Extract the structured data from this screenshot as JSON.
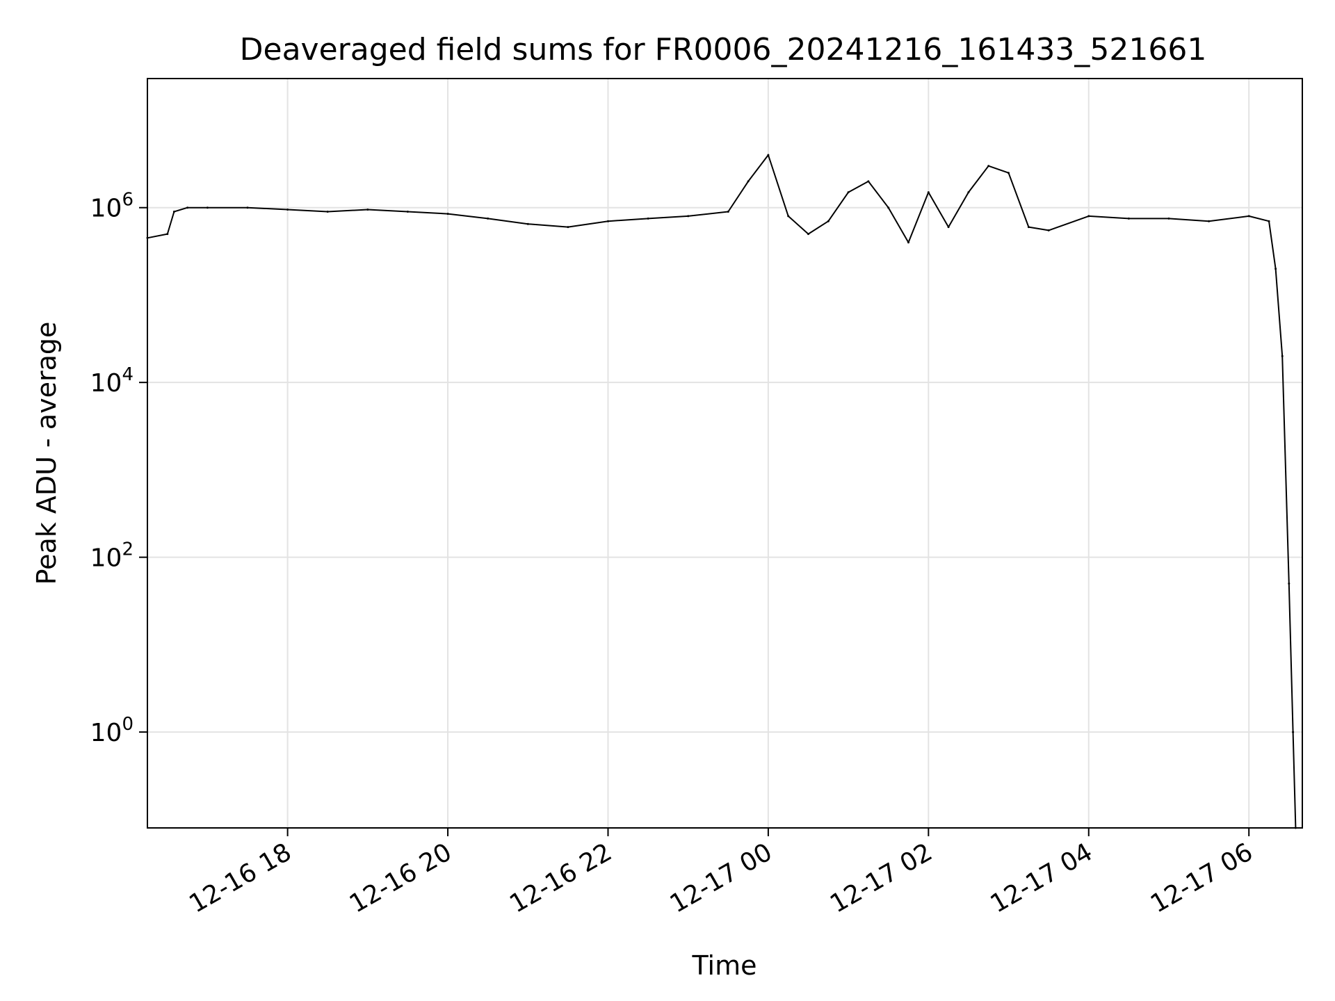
{
  "chart_data": {
    "type": "line",
    "title": "Deaveraged field sums for FR0006_20241216_161433_521661",
    "xlabel": "Time",
    "ylabel": "Peak ADU - average",
    "yscale": "log",
    "xlim": [
      "2024-12-16 16:15",
      "2024-12-17 06:40"
    ],
    "ylim": [
      0.08,
      30000000.0
    ],
    "grid": true,
    "line_color": "#000000",
    "x_ticks": [
      "12-16 18",
      "12-16 20",
      "12-16 22",
      "12-17 00",
      "12-17 02",
      "12-17 04",
      "12-17 06"
    ],
    "y_ticks": [
      {
        "base": "10",
        "exp": "0",
        "value": 1
      },
      {
        "base": "10",
        "exp": "2",
        "value": 100
      },
      {
        "base": "10",
        "exp": "4",
        "value": 10000
      },
      {
        "base": "10",
        "exp": "6",
        "value": 1000000
      }
    ],
    "series": [
      {
        "x": [
          "2024-12-16 16:15",
          "2024-12-16 16:30",
          "2024-12-16 16:35",
          "2024-12-16 16:45",
          "2024-12-16 17:00",
          "2024-12-16 17:30",
          "2024-12-16 18:00",
          "2024-12-16 18:30",
          "2024-12-16 19:00",
          "2024-12-16 19:30",
          "2024-12-16 20:00",
          "2024-12-16 20:30",
          "2024-12-16 21:00",
          "2024-12-16 21:30",
          "2024-12-16 22:00",
          "2024-12-16 22:30",
          "2024-12-16 23:00",
          "2024-12-16 23:30",
          "2024-12-16 23:45",
          "2024-12-17 00:00",
          "2024-12-17 00:15",
          "2024-12-17 00:30",
          "2024-12-17 00:45",
          "2024-12-17 01:00",
          "2024-12-17 01:15",
          "2024-12-17 01:30",
          "2024-12-17 01:45",
          "2024-12-17 02:00",
          "2024-12-17 02:15",
          "2024-12-17 02:30",
          "2024-12-17 02:45",
          "2024-12-17 03:00",
          "2024-12-17 03:15",
          "2024-12-17 03:30",
          "2024-12-17 04:00",
          "2024-12-17 04:30",
          "2024-12-17 05:00",
          "2024-12-17 05:30",
          "2024-12-17 06:00",
          "2024-12-17 06:15",
          "2024-12-17 06:20",
          "2024-12-17 06:25",
          "2024-12-17 06:30",
          "2024-12-17 06:33",
          "2024-12-17 06:35"
        ],
        "y": [
          450000,
          500000,
          900000,
          1000000,
          1000000,
          1000000,
          950000,
          900000,
          950000,
          900000,
          850000,
          750000,
          650000,
          600000,
          700000,
          750000,
          800000,
          900000,
          2000000,
          4000000,
          800000,
          500000,
          700000,
          1500000,
          2000000,
          1000000,
          400000,
          1500000,
          600000,
          1500000,
          3000000,
          2500000,
          600000,
          550000,
          800000,
          750000,
          750000,
          700000,
          800000,
          700000,
          200000,
          20000,
          50,
          1,
          0.08
        ]
      }
    ]
  }
}
